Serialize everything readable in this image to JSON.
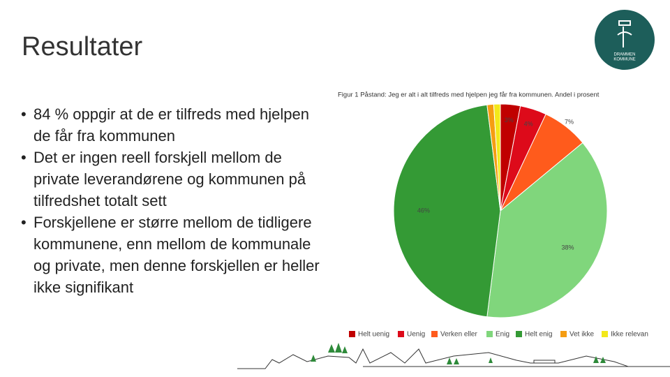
{
  "title": "Resultater",
  "logo": {
    "line1": "DRAMMEN",
    "line2": "KOMMUNE"
  },
  "bullets": [
    "84 % oppgir at de er tilfreds med hjelpen de får fra kommunen",
    "Det er ingen reell forskjell mellom de private leverandørene og kommunen på tilfredshet totalt sett",
    "Forskjellene er større mellom de tidligere kommunene, enn mellom de kommunale og private, men denne forskjellen er heller ikke signifikant"
  ],
  "chart_data": {
    "type": "pie",
    "title": "Figur 1 Påstand: Jeg er alt i alt tilfreds med hjelpen jeg får fra kommunen. Andel i prosent",
    "categories": [
      "Helt uenig",
      "Uenig",
      "Verken eller",
      "Enig",
      "Helt enig",
      "Vet ikke",
      "Ikke relevan"
    ],
    "values": [
      3,
      4,
      7,
      38,
      46,
      1,
      1
    ],
    "value_labels": [
      "3%",
      "4%",
      "7%",
      "38%",
      "46%",
      null,
      null
    ],
    "colors": [
      "#c00000",
      "#dd0a1a",
      "#ff5b1c",
      "#80d67c",
      "#349a35",
      "#f59d12",
      "#f3e81a"
    ],
    "legend": "bottom"
  }
}
